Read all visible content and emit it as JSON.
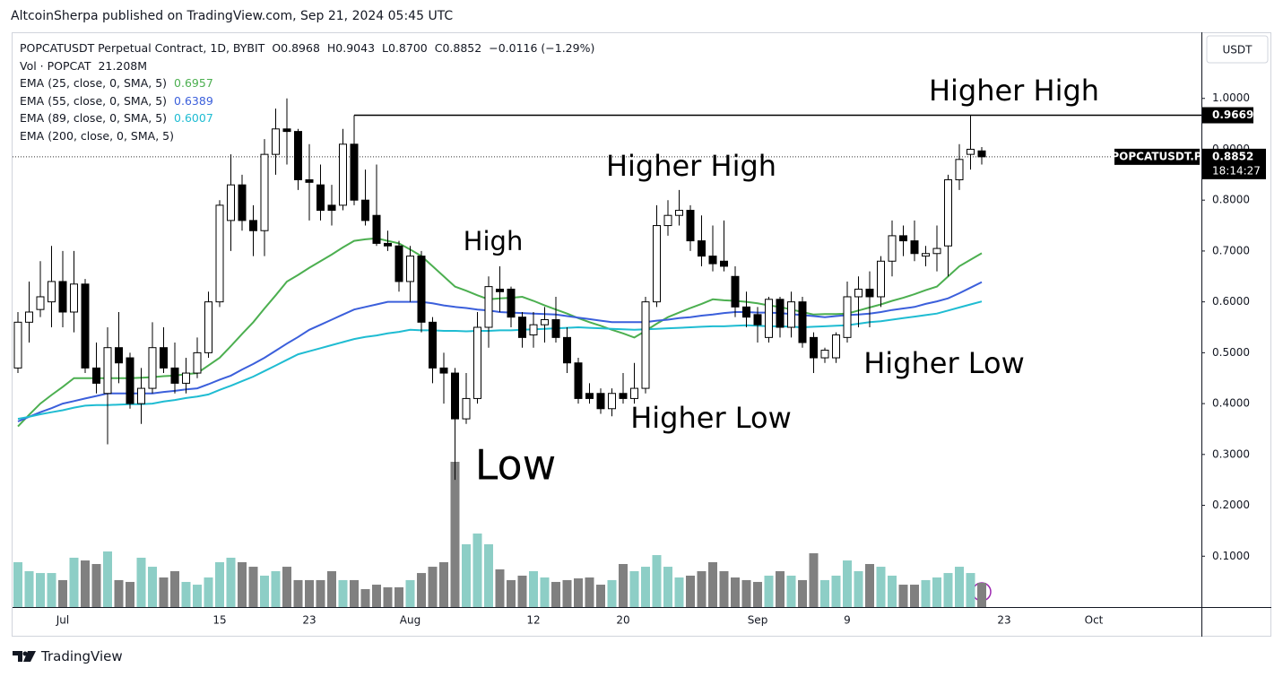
{
  "header": "AltcoinSherpa published on TradingView.com, Sep 21, 2024 05:45 UTC",
  "footer": "TradingView",
  "chart_data": {
    "type": "candlestick",
    "title": "POPCATUSDT Perpetual Contract, 1D, BYBIT",
    "ohlc_text": [
      "O0.8968",
      "H0.9043",
      "L0.8700",
      "C0.8852",
      "−0.0116 (−1.29%)"
    ],
    "volume_title": "Vol · POPCAT",
    "volume_value_label": "21.208M",
    "extra_indicator": "EMA (200, close, 0, SMA, 5)",
    "currency": "USDT",
    "symbol_tag": "POPCATUSDT.P",
    "countdown": "18:14:27",
    "annotations": [
      "Higher High",
      "Higher High",
      "High",
      "Higher Low",
      "Higher Low",
      "Low"
    ],
    "hline": 0.9669,
    "up_color": "#ffffff",
    "down_color": "#000000",
    "volume_up_color": "#8dcec6",
    "volume_down_color": "#808080",
    "categories": [
      null,
      null,
      null,
      null,
      "Jul",
      null,
      null,
      null,
      null,
      null,
      null,
      null,
      null,
      null,
      null,
      null,
      null,
      null,
      "15",
      null,
      null,
      null,
      null,
      null,
      null,
      null,
      "23",
      null,
      null,
      null,
      null,
      null,
      null,
      null,
      null,
      "Aug",
      null,
      null,
      null,
      null,
      null,
      null,
      null,
      null,
      null,
      null,
      "12",
      null,
      null,
      null,
      null,
      null,
      null,
      null,
      "20",
      null,
      null,
      null,
      null,
      null,
      null,
      null,
      null,
      null,
      null,
      null,
      "Sep",
      null,
      null,
      null,
      null,
      null,
      null,
      null,
      "9",
      null,
      null,
      null,
      null,
      null,
      null,
      null,
      null,
      null,
      null,
      null,
      null,
      null,
      "23",
      null,
      null,
      null,
      null,
      null,
      null,
      null,
      "Oct"
    ],
    "open": [
      0.47,
      0.56,
      0.585,
      0.6,
      0.64,
      0.58,
      0.635,
      0.47,
      0.42,
      0.51,
      0.49,
      0.4,
      0.43,
      0.51,
      0.47,
      0.44,
      0.46,
      0.5,
      0.6,
      0.76,
      0.83,
      0.76,
      0.74,
      0.89,
      0.94,
      0.935,
      0.84,
      0.83,
      0.79,
      0.79,
      0.91,
      0.8,
      0.77,
      0.715,
      0.71,
      0.64,
      0.69,
      0.56,
      0.47,
      0.46,
      0.37,
      0.41,
      0.55,
      0.625,
      0.625,
      0.57,
      0.535,
      0.555,
      0.565,
      0.53,
      0.48,
      0.42,
      0.42,
      0.39,
      0.42,
      0.41,
      0.43,
      0.6,
      0.75,
      0.77,
      0.78,
      0.72,
      0.69,
      0.68,
      0.65,
      0.59,
      0.575,
      0.53,
      0.605,
      0.55,
      0.6,
      0.53,
      0.49,
      0.49,
      0.53,
      0.61,
      0.625,
      0.61,
      0.68,
      0.73,
      0.72,
      0.69,
      0.695,
      0.71,
      0.84,
      0.89,
      0.8968,
      null,
      null,
      null,
      null,
      null,
      null,
      null,
      null,
      null,
      null
    ],
    "high": [
      0.58,
      0.64,
      0.68,
      0.71,
      0.7,
      0.7,
      0.645,
      0.52,
      0.55,
      0.58,
      0.5,
      0.47,
      0.56,
      0.55,
      0.52,
      0.49,
      0.53,
      0.62,
      0.8,
      0.89,
      0.85,
      0.79,
      0.92,
      0.98,
      1.0,
      0.94,
      0.91,
      0.87,
      0.83,
      0.94,
      0.9669,
      0.86,
      0.87,
      0.74,
      0.72,
      0.71,
      0.7,
      0.57,
      0.5,
      0.47,
      0.46,
      0.58,
      0.65,
      0.67,
      0.63,
      0.58,
      0.58,
      0.59,
      0.61,
      0.55,
      0.49,
      0.44,
      0.43,
      0.43,
      0.46,
      0.48,
      0.61,
      0.79,
      0.8,
      0.82,
      0.79,
      0.77,
      0.75,
      0.76,
      0.67,
      0.62,
      0.59,
      0.61,
      0.61,
      0.62,
      0.61,
      0.54,
      0.51,
      0.54,
      0.64,
      0.65,
      0.66,
      0.69,
      0.76,
      0.75,
      0.76,
      0.71,
      0.75,
      0.85,
      0.91,
      0.9669,
      0.9043,
      null,
      null,
      null,
      null,
      null,
      null,
      null,
      null,
      null,
      null
    ],
    "low": [
      0.46,
      0.52,
      0.57,
      0.55,
      0.55,
      0.54,
      0.46,
      0.42,
      0.32,
      0.44,
      0.39,
      0.36,
      0.42,
      0.46,
      0.42,
      0.42,
      0.45,
      0.49,
      0.59,
      0.7,
      0.74,
      0.69,
      0.69,
      0.85,
      0.87,
      0.82,
      0.76,
      0.76,
      0.75,
      0.78,
      0.79,
      0.75,
      0.71,
      0.7,
      0.62,
      0.6,
      0.54,
      0.44,
      0.4,
      0.25,
      0.36,
      0.4,
      0.51,
      0.58,
      0.55,
      0.51,
      0.51,
      0.52,
      0.52,
      0.46,
      0.4,
      0.4,
      0.38,
      0.375,
      0.4,
      0.4,
      0.42,
      0.59,
      0.73,
      0.75,
      0.7,
      0.67,
      0.66,
      0.66,
      0.57,
      0.55,
      0.52,
      0.52,
      0.53,
      0.53,
      0.51,
      0.46,
      0.48,
      0.48,
      0.52,
      0.55,
      0.55,
      0.59,
      0.65,
      0.69,
      0.68,
      0.67,
      0.66,
      0.65,
      0.82,
      0.86,
      0.87,
      null,
      null,
      null,
      null,
      null,
      null,
      null,
      null,
      null,
      null
    ],
    "close": [
      0.56,
      0.58,
      0.61,
      0.64,
      0.58,
      0.635,
      0.47,
      0.44,
      0.51,
      0.48,
      0.4,
      0.43,
      0.51,
      0.47,
      0.44,
      0.46,
      0.5,
      0.6,
      0.79,
      0.83,
      0.76,
      0.74,
      0.89,
      0.94,
      0.935,
      0.84,
      0.835,
      0.78,
      0.78,
      0.91,
      0.8,
      0.76,
      0.715,
      0.71,
      0.64,
      0.69,
      0.56,
      0.47,
      0.46,
      0.37,
      0.41,
      0.55,
      0.63,
      0.62,
      0.57,
      0.53,
      0.555,
      0.565,
      0.53,
      0.48,
      0.41,
      0.41,
      0.39,
      0.42,
      0.41,
      0.43,
      0.6,
      0.75,
      0.77,
      0.78,
      0.72,
      0.69,
      0.675,
      0.67,
      0.59,
      0.57,
      0.555,
      0.605,
      0.55,
      0.6,
      0.52,
      0.49,
      0.505,
      0.535,
      0.61,
      0.625,
      0.61,
      0.68,
      0.73,
      0.72,
      0.695,
      0.695,
      0.705,
      0.84,
      0.88,
      0.9,
      0.8852,
      null,
      null,
      null,
      null,
      null,
      null,
      null,
      null,
      null,
      null
    ],
    "volume": [
      39.3,
      31.4,
      29.8,
      29.8,
      23.6,
      43.2,
      40.8,
      37.7,
      48.7,
      23.6,
      22.0,
      43.2,
      35.3,
      25.9,
      31.4,
      22.0,
      19.6,
      25.9,
      39.3,
      43.2,
      39.3,
      35.3,
      27.5,
      31.4,
      35.3,
      23.6,
      23.6,
      23.6,
      31.4,
      23.6,
      23.6,
      15.7,
      19.6,
      17.3,
      17.3,
      23.6,
      29.8,
      35.3,
      39.3,
      127.2,
      55.0,
      64.4,
      55.0,
      33.0,
      23.6,
      27.5,
      31.4,
      25.9,
      22.0,
      23.6,
      25.1,
      25.9,
      19.6,
      23.6,
      37.7,
      31.4,
      35.3,
      45.5,
      35.3,
      25.9,
      27.5,
      31.4,
      39.3,
      31.4,
      25.9,
      23.6,
      22.0,
      27.5,
      31.4,
      27.5,
      23.6,
      47.1,
      23.6,
      27.5,
      40.8,
      31.4,
      37.7,
      35.3,
      27.5,
      19.6,
      19.6,
      23.6,
      25.9,
      29.8,
      35.3,
      29.8,
      21.208,
      null,
      null,
      null,
      null,
      null,
      null,
      null,
      null,
      null,
      null
    ],
    "series": [
      {
        "name": "EMA (25, close, 0, SMA, 5)",
        "color": "#4caf50",
        "values": [
          0.355,
          0.378,
          0.4,
          0.417,
          0.433,
          0.45,
          0.45,
          0.45,
          0.45,
          0.45,
          0.45,
          0.451,
          0.452,
          0.454,
          0.455,
          0.458,
          0.46,
          0.475,
          0.49,
          0.513,
          0.537,
          0.56,
          0.587,
          0.613,
          0.64,
          0.653,
          0.667,
          0.68,
          0.693,
          0.707,
          0.72,
          0.723,
          0.725,
          0.72,
          0.715,
          0.703,
          0.69,
          0.67,
          0.65,
          0.63,
          0.622,
          0.613,
          0.605,
          0.607,
          0.608,
          0.61,
          0.602,
          0.593,
          0.585,
          0.577,
          0.568,
          0.56,
          0.553,
          0.545,
          0.538,
          0.53,
          0.543,
          0.557,
          0.57,
          0.579,
          0.588,
          0.596,
          0.605,
          0.603,
          0.602,
          0.6,
          0.597,
          0.593,
          0.59,
          0.585,
          0.58,
          0.575,
          0.576,
          0.576,
          0.577,
          0.583,
          0.589,
          0.595,
          0.602,
          0.608,
          0.615,
          0.623,
          0.63,
          0.65,
          0.67,
          0.683,
          0.6957,
          null,
          null,
          null,
          null,
          null,
          null,
          null,
          null,
          null,
          null
        ]
      },
      {
        "name": "EMA (55, close, 0, SMA, 5)",
        "color": "#3b5fdb",
        "values": [
          0.365,
          0.374,
          0.383,
          0.391,
          0.4,
          0.405,
          0.41,
          0.415,
          0.42,
          0.42,
          0.42,
          0.42,
          0.42,
          0.423,
          0.425,
          0.428,
          0.43,
          0.438,
          0.447,
          0.455,
          0.467,
          0.478,
          0.49,
          0.504,
          0.518,
          0.531,
          0.545,
          0.555,
          0.565,
          0.575,
          0.585,
          0.59,
          0.595,
          0.6,
          0.6,
          0.6,
          0.6,
          0.597,
          0.593,
          0.59,
          0.588,
          0.585,
          0.583,
          0.58,
          0.579,
          0.578,
          0.577,
          0.576,
          0.575,
          0.572,
          0.569,
          0.566,
          0.563,
          0.56,
          0.56,
          0.56,
          0.56,
          0.563,
          0.565,
          0.568,
          0.57,
          0.573,
          0.575,
          0.578,
          0.58,
          0.58,
          0.579,
          0.579,
          0.578,
          0.576,
          0.574,
          0.572,
          0.57,
          0.572,
          0.574,
          0.575,
          0.577,
          0.58,
          0.584,
          0.587,
          0.59,
          0.596,
          0.601,
          0.607,
          0.617,
          0.628,
          0.6389,
          null,
          null,
          null,
          null,
          null,
          null,
          null,
          null,
          null,
          null
        ]
      },
      {
        "name": "EMA (89, close, 0, SMA, 5)",
        "color": "#1fbcd2",
        "values": [
          0.37,
          0.374,
          0.379,
          0.383,
          0.387,
          0.392,
          0.396,
          0.397,
          0.397,
          0.398,
          0.399,
          0.399,
          0.4,
          0.404,
          0.407,
          0.411,
          0.414,
          0.418,
          0.427,
          0.435,
          0.444,
          0.453,
          0.464,
          0.475,
          0.486,
          0.497,
          0.503,
          0.509,
          0.515,
          0.521,
          0.527,
          0.531,
          0.534,
          0.538,
          0.541,
          0.545,
          0.544,
          0.544,
          0.543,
          0.543,
          0.542,
          0.543,
          0.543,
          0.544,
          0.544,
          0.545,
          0.546,
          0.547,
          0.548,
          0.549,
          0.55,
          0.549,
          0.548,
          0.547,
          0.546,
          0.545,
          0.546,
          0.547,
          0.548,
          0.549,
          0.55,
          0.551,
          0.552,
          0.552,
          0.553,
          0.554,
          0.553,
          0.552,
          0.552,
          0.551,
          0.55,
          0.551,
          0.552,
          0.553,
          0.554,
          0.557,
          0.56,
          0.562,
          0.565,
          0.568,
          0.571,
          0.574,
          0.577,
          0.583,
          0.589,
          0.595,
          0.6007,
          null,
          null,
          null,
          null,
          null,
          null,
          null,
          null,
          null,
          null
        ]
      }
    ],
    "ylim": [
      0,
      1.13
    ],
    "yticks": [
      {
        "value": 0.1,
        "label": "0.1000"
      },
      {
        "value": 0.2,
        "label": "0.2000"
      },
      {
        "value": 0.3,
        "label": "0.3000"
      },
      {
        "value": 0.4,
        "label": "0.4000"
      },
      {
        "value": 0.5,
        "label": "0.5000"
      },
      {
        "value": 0.6,
        "label": "0.6000"
      },
      {
        "value": 0.7,
        "label": "0.7000"
      },
      {
        "value": 0.8,
        "label": "0.8000"
      },
      {
        "value": 0.9,
        "label": "0.9000"
      },
      {
        "value": 1.0,
        "label": "1.0000"
      }
    ]
  }
}
